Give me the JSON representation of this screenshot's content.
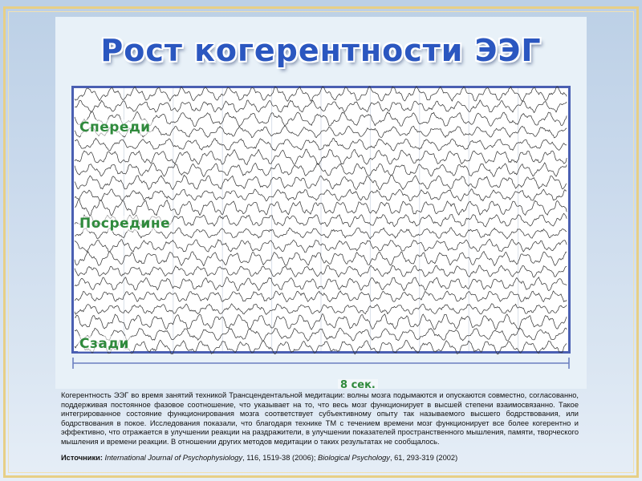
{
  "slide": {
    "title": "Рост когерентности ЭЭГ"
  },
  "eeg": {
    "labels": {
      "front": "Спереди",
      "middle": "Посредине",
      "back": "Сзади"
    },
    "duration_label": "8 сек.",
    "channel_count": 21,
    "colors": {
      "border": "#4a5fb2",
      "trace": "#3a3a3a",
      "label": "#2f8a3c",
      "title": "#2b57c0"
    }
  },
  "caption": {
    "text": "Когерентность ЭЭГ во время занятий техникой Трансцендентальной медитации: волны мозга подымаются и опускаются совместно, согласованно, поддерживая постоянное фазовое соотношение, что указывает на то, что весь мозг функционирует в высшей степени взаимосвязанно. Такое интегрированное состояние функционирования мозга соответствует субъективному опыту так называемого высшего бодрствования, или бодрствования в покое. Исследования показали, что благодаря технике ТМ с течением времени мозг функционирует все более когерентно и эффективно, что отражается в улучшении реакции на раздражители, в улучшении показателей пространственного мышления, памяти, творческого мышления и времени реакции. В отношении других методов медитации о таких результатах не сообщалось.",
    "sources_label": "Источники:",
    "source_1_journal": "International Journal of Psychophysiology",
    "source_1_ref": ", 116, 1519-38 (2006); ",
    "source_2_journal": "Biological Psychology",
    "source_2_ref": ", 61, 293-319 (2002)"
  }
}
